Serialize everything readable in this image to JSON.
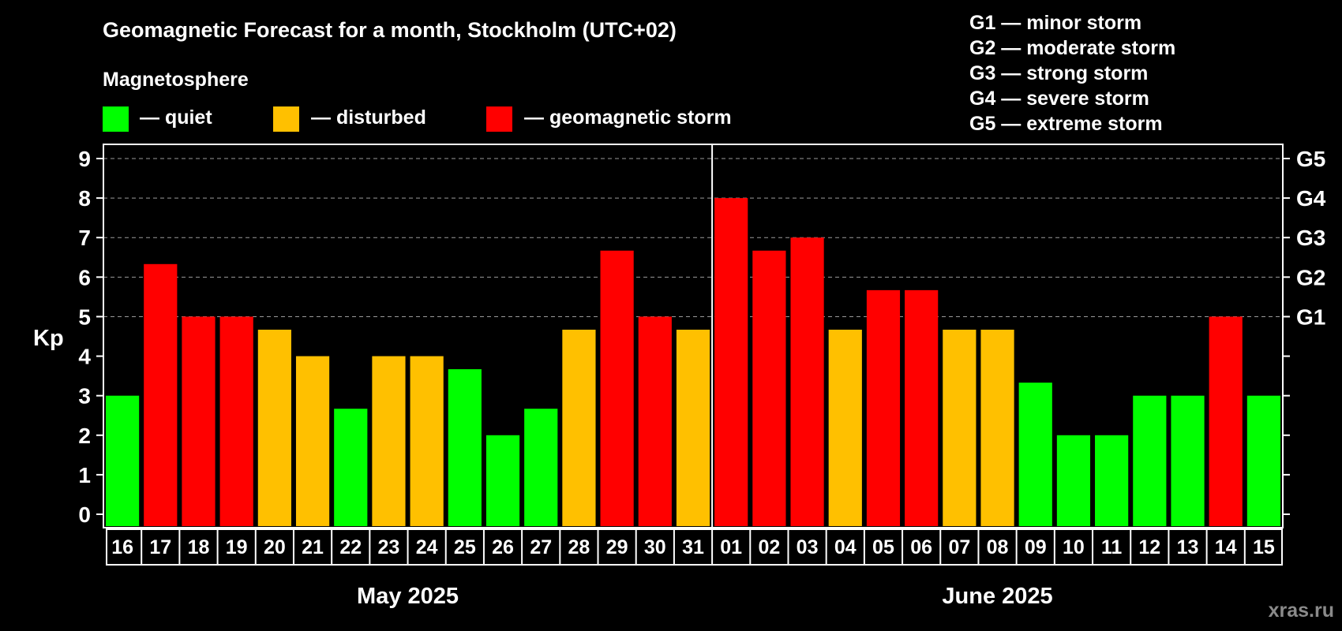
{
  "title": "Geomagnetic Forecast for a month, Stockholm (UTC+02)",
  "legend": {
    "heading": "Magnetosphere",
    "items": [
      {
        "label": "— quiet",
        "color": "#00ff00"
      },
      {
        "label": "— disturbed",
        "color": "#ffc000"
      },
      {
        "label": "— geomagnetic storm",
        "color": "#ff0000"
      }
    ]
  },
  "storm_scale": [
    "G1 — minor storm",
    "G2 — moderate storm",
    "G3 — strong storm",
    "G4 — severe storm",
    "G5 — extreme storm"
  ],
  "watermark": "xras.ru",
  "chart_data": {
    "type": "bar",
    "ylabel": "Kp",
    "ylim": [
      0,
      9
    ],
    "yticks": [
      "0",
      "1",
      "2",
      "3",
      "4",
      "5",
      "6",
      "7",
      "8",
      "9"
    ],
    "right_ticks": [
      {
        "kp": 5,
        "label": "G1"
      },
      {
        "kp": 6,
        "label": "G2"
      },
      {
        "kp": 7,
        "label": "G3"
      },
      {
        "kp": 8,
        "label": "G4"
      },
      {
        "kp": 9,
        "label": "G5"
      }
    ],
    "grid": "horizontal dashed at Kp 5–9",
    "categories": [
      "16",
      "17",
      "18",
      "19",
      "20",
      "21",
      "22",
      "23",
      "24",
      "25",
      "26",
      "27",
      "28",
      "29",
      "30",
      "31",
      "01",
      "02",
      "03",
      "04",
      "05",
      "06",
      "07",
      "08",
      "09",
      "10",
      "11",
      "12",
      "13",
      "14",
      "15"
    ],
    "values": [
      3.0,
      6.33,
      5.0,
      5.0,
      4.67,
      4.0,
      2.67,
      4.0,
      4.0,
      3.67,
      2.0,
      2.67,
      4.67,
      6.67,
      5.0,
      4.67,
      8.0,
      6.67,
      7.0,
      4.67,
      5.67,
      5.67,
      4.67,
      4.67,
      3.33,
      2.0,
      2.0,
      3.0,
      3.0,
      5.0,
      3.0
    ],
    "levels": [
      "quiet",
      "storm",
      "storm",
      "storm",
      "disturbed",
      "disturbed",
      "quiet",
      "disturbed",
      "disturbed",
      "quiet",
      "quiet",
      "quiet",
      "disturbed",
      "storm",
      "storm",
      "disturbed",
      "storm",
      "storm",
      "storm",
      "disturbed",
      "storm",
      "storm",
      "disturbed",
      "disturbed",
      "quiet",
      "quiet",
      "quiet",
      "quiet",
      "quiet",
      "storm",
      "quiet"
    ],
    "colors": {
      "quiet": "#00ff00",
      "disturbed": "#ffc000",
      "storm": "#ff0000"
    },
    "months": [
      {
        "label": "May 2025",
        "count": 16
      },
      {
        "label": "June 2025",
        "count": 15
      }
    ]
  }
}
